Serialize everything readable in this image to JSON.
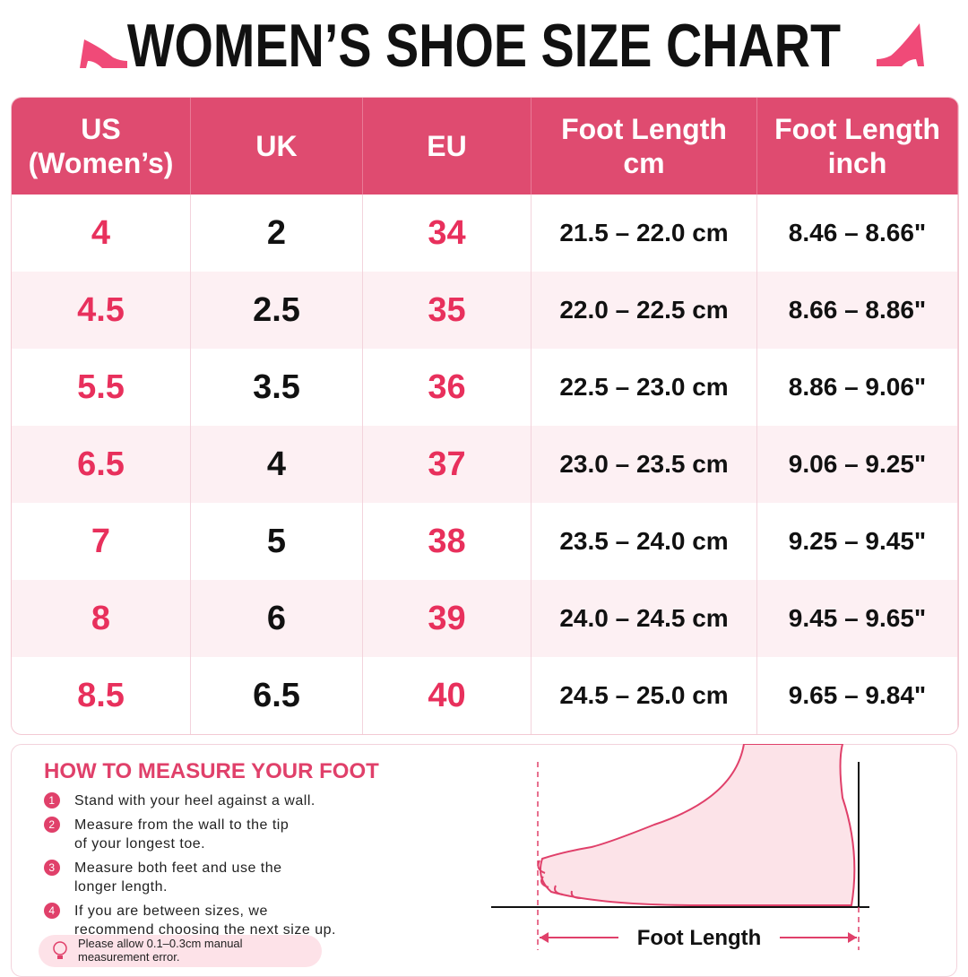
{
  "title": "WOMEN’S SHOE SIZE CHART",
  "table": {
    "header": [
      [
        "US",
        "(Women’s)"
      ],
      [
        "UK"
      ],
      [
        "EU"
      ],
      [
        "Foot Length",
        "cm"
      ],
      [
        "Foot Length",
        "inch"
      ]
    ],
    "rows": [
      [
        "4",
        "2",
        "34",
        "21.5 – 22.0 cm",
        "8.46 – 8.66\""
      ],
      [
        "4.5",
        "2.5",
        "35",
        "22.0 – 22.5 cm",
        "8.66 – 8.86\""
      ],
      [
        "5.5",
        "3.5",
        "36",
        "22.5 – 23.0 cm",
        "8.86 – 9.06\""
      ],
      [
        "6.5",
        "4",
        "37",
        "23.0 – 23.5 cm",
        "9.06 – 9.25\""
      ],
      [
        "7",
        "5",
        "38",
        "23.5 – 24.0 cm",
        "9.25 – 9.45\""
      ],
      [
        "8",
        "6",
        "39",
        "24.0 – 24.5 cm",
        "9.45 – 9.65\""
      ],
      [
        "8.5",
        "6.5",
        "40",
        "24.5 – 25.0 cm",
        "9.65 – 9.84\""
      ]
    ]
  },
  "measure": {
    "title": "HOW TO MEASURE YOUR FOOT",
    "steps": [
      {
        "number": "1",
        "lines": [
          "Stand with your heel against a wall."
        ]
      },
      {
        "number": "2",
        "lines": [
          "Measure from the wall to the tip",
          "of your longest toe."
        ]
      },
      {
        "number": "3",
        "lines": [
          "Measure both feet and use the",
          "longer length."
        ]
      },
      {
        "number": "4",
        "lines": [
          "If you are between sizes, we",
          "recommend choosing the next size up."
        ]
      }
    ],
    "note": [
      "Please allow 0.1–0.3cm manual",
      "measurement error."
    ],
    "diagram_label": "Foot Length"
  }
}
